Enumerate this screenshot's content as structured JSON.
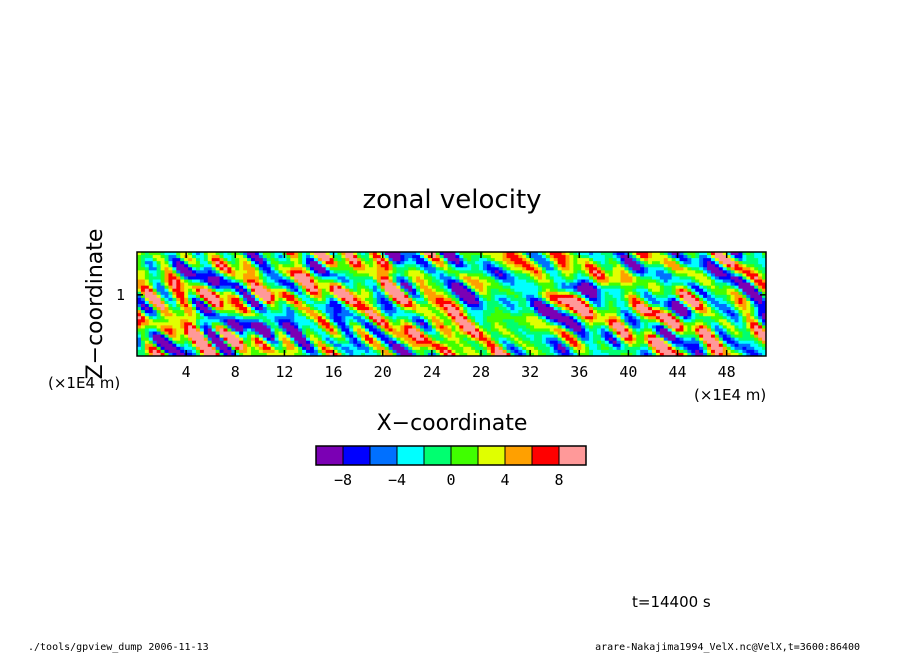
{
  "chart_data": {
    "type": "heatmap",
    "title": "zonal velocity",
    "xlabel": "X−coordinate",
    "ylabel": "Z−coordinate",
    "x_unit": "(×1E4 m)",
    "y_unit": "(×1E4 m)",
    "x_ticks": [
      "4",
      "8",
      "12",
      "16",
      "20",
      "24",
      "28",
      "32",
      "36",
      "40",
      "44",
      "48"
    ],
    "x_tick_values": [
      4,
      8,
      12,
      16,
      20,
      24,
      28,
      32,
      36,
      40,
      44,
      48
    ],
    "y_ticks": [
      "1"
    ],
    "y_tick_values": [
      1
    ],
    "xlim": [
      0,
      51.2
    ],
    "ylim": [
      0,
      1.7
    ],
    "colorbar": {
      "levels": [
        -10,
        -8,
        -6,
        -4,
        -2,
        0,
        2,
        4,
        6,
        8,
        10
      ],
      "colors": [
        "#7b00b4",
        "#0000ff",
        "#0070ff",
        "#00ffff",
        "#00ff70",
        "#40ff00",
        "#e0ff00",
        "#ffa000",
        "#ff0000",
        "#ff9999"
      ],
      "labels": [
        "−8",
        "−4",
        "0",
        "4",
        "8"
      ],
      "label_values": [
        -8,
        -4,
        0,
        4,
        8
      ]
    },
    "time_label": "t=14400 s"
  },
  "footer": {
    "left": "./tools/gpview_dump  2006-11-13",
    "right": "arare-Nakajima1994_VelX.nc@VelX,t=3600:86400"
  },
  "colors": {
    "frame": "#000000",
    "background": "#ffffff"
  }
}
